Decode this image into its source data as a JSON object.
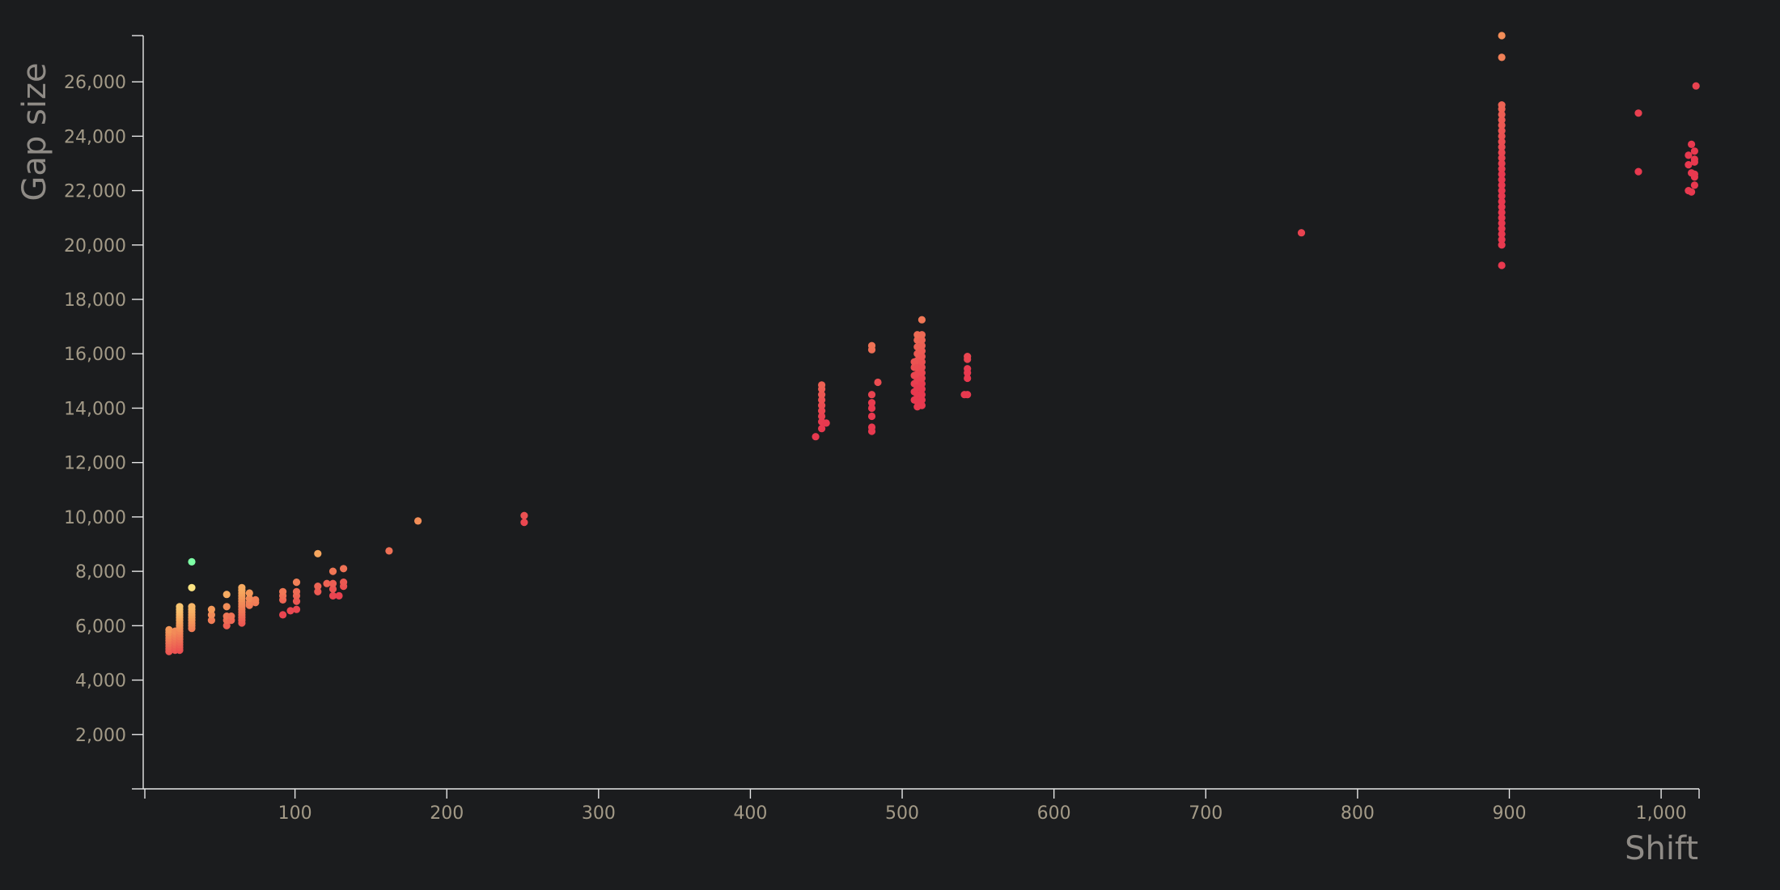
{
  "chart_data": {
    "type": "scatter",
    "xlabel": "Shift",
    "ylabel": "Gap size",
    "xlim": [
      0,
      1025
    ],
    "ylim": [
      0,
      27700
    ],
    "x_ticks": [
      "100",
      "200",
      "300",
      "400",
      "500",
      "600",
      "700",
      "800",
      "900",
      "1,000"
    ],
    "y_ticks": [
      "2,000",
      "4,000",
      "6,000",
      "8,000",
      "10,000",
      "12,000",
      "14,000",
      "16,000",
      "18,000",
      "20,000",
      "22,000",
      "24,000",
      "26,000"
    ],
    "grid": false,
    "legend": "none",
    "colors": {
      "background": "#1b1c1e",
      "low": "#e8394f",
      "mid": "#f5a05a",
      "high": "#fef08a",
      "highest": "#7dffa5"
    },
    "points": [
      [
        17,
        5050
      ],
      [
        17,
        5150
      ],
      [
        17,
        5250
      ],
      [
        17,
        5350
      ],
      [
        17,
        5450
      ],
      [
        17,
        5550
      ],
      [
        17,
        5650
      ],
      [
        17,
        5750
      ],
      [
        17,
        5850
      ],
      [
        21,
        5100
      ],
      [
        21,
        5200
      ],
      [
        21,
        5300
      ],
      [
        21,
        5400
      ],
      [
        21,
        5500
      ],
      [
        21,
        5600
      ],
      [
        21,
        5700
      ],
      [
        21,
        5800
      ],
      [
        24,
        5100
      ],
      [
        24,
        5200
      ],
      [
        24,
        5300
      ],
      [
        24,
        5400
      ],
      [
        24,
        5500
      ],
      [
        24,
        5600
      ],
      [
        24,
        5700
      ],
      [
        24,
        5800
      ],
      [
        24,
        5900
      ],
      [
        24,
        6000
      ],
      [
        24,
        6100
      ],
      [
        24,
        6200
      ],
      [
        24,
        6300
      ],
      [
        24,
        6400
      ],
      [
        24,
        6500
      ],
      [
        24,
        6600
      ],
      [
        24,
        6700
      ],
      [
        32,
        5900
      ],
      [
        32,
        6000
      ],
      [
        32,
        6100
      ],
      [
        32,
        6200
      ],
      [
        32,
        6300
      ],
      [
        32,
        6400
      ],
      [
        32,
        6500
      ],
      [
        32,
        6600
      ],
      [
        32,
        6700
      ],
      [
        32,
        7400
      ],
      [
        32,
        8350
      ],
      [
        45,
        6200
      ],
      [
        45,
        6400
      ],
      [
        45,
        6600
      ],
      [
        55,
        6000
      ],
      [
        55,
        6200
      ],
      [
        55,
        6350
      ],
      [
        55,
        6700
      ],
      [
        55,
        7150
      ],
      [
        58,
        6200
      ],
      [
        58,
        6350
      ],
      [
        65,
        6100
      ],
      [
        65,
        6200
      ],
      [
        65,
        6300
      ],
      [
        65,
        6400
      ],
      [
        65,
        6500
      ],
      [
        65,
        6600
      ],
      [
        65,
        6700
      ],
      [
        65,
        6800
      ],
      [
        65,
        6900
      ],
      [
        65,
        7000
      ],
      [
        65,
        7100
      ],
      [
        65,
        7200
      ],
      [
        65,
        7300
      ],
      [
        65,
        7400
      ],
      [
        70,
        6750
      ],
      [
        70,
        6850
      ],
      [
        70,
        7000
      ],
      [
        70,
        7200
      ],
      [
        74,
        6850
      ],
      [
        74,
        6950
      ],
      [
        92,
        6400
      ],
      [
        92,
        6950
      ],
      [
        92,
        7100
      ],
      [
        92,
        7250
      ],
      [
        97,
        6550
      ],
      [
        101,
        6600
      ],
      [
        101,
        6900
      ],
      [
        101,
        7100
      ],
      [
        101,
        7250
      ],
      [
        101,
        7600
      ],
      [
        115,
        7250
      ],
      [
        115,
        7450
      ],
      [
        115,
        8650
      ],
      [
        121,
        7550
      ],
      [
        125,
        7100
      ],
      [
        125,
        7350
      ],
      [
        125,
        7550
      ],
      [
        125,
        8000
      ],
      [
        129,
        7100
      ],
      [
        132,
        7450
      ],
      [
        132,
        7600
      ],
      [
        132,
        8100
      ],
      [
        162,
        8750
      ],
      [
        181,
        9850
      ],
      [
        251,
        9800
      ],
      [
        251,
        10050
      ],
      [
        443,
        12950
      ],
      [
        447,
        13250
      ],
      [
        447,
        13500
      ],
      [
        447,
        13700
      ],
      [
        447,
        13900
      ],
      [
        447,
        14100
      ],
      [
        447,
        14300
      ],
      [
        447,
        14500
      ],
      [
        447,
        14700
      ],
      [
        447,
        14850
      ],
      [
        450,
        13450
      ],
      [
        480,
        13150
      ],
      [
        480,
        13300
      ],
      [
        480,
        13700
      ],
      [
        480,
        14000
      ],
      [
        480,
        14200
      ],
      [
        480,
        14500
      ],
      [
        480,
        16150
      ],
      [
        480,
        16300
      ],
      [
        484,
        14950
      ],
      [
        508,
        14300
      ],
      [
        508,
        14600
      ],
      [
        508,
        14900
      ],
      [
        508,
        15200
      ],
      [
        508,
        15500
      ],
      [
        508,
        15700
      ],
      [
        510,
        14050
      ],
      [
        510,
        14250
      ],
      [
        510,
        14500
      ],
      [
        510,
        14750
      ],
      [
        510,
        15000
      ],
      [
        510,
        15250
      ],
      [
        510,
        15500
      ],
      [
        510,
        15750
      ],
      [
        510,
        16000
      ],
      [
        510,
        16250
      ],
      [
        510,
        16500
      ],
      [
        510,
        16700
      ],
      [
        513,
        14100
      ],
      [
        513,
        14300
      ],
      [
        513,
        14500
      ],
      [
        513,
        14700
      ],
      [
        513,
        14900
      ],
      [
        513,
        15100
      ],
      [
        513,
        15300
      ],
      [
        513,
        15500
      ],
      [
        513,
        15700
      ],
      [
        513,
        15900
      ],
      [
        513,
        16100
      ],
      [
        513,
        16300
      ],
      [
        513,
        16500
      ],
      [
        513,
        16700
      ],
      [
        513,
        17250
      ],
      [
        541,
        14500
      ],
      [
        543,
        14500
      ],
      [
        543,
        15100
      ],
      [
        543,
        15300
      ],
      [
        543,
        15450
      ],
      [
        543,
        15800
      ],
      [
        543,
        15900
      ],
      [
        763,
        20450
      ],
      [
        895,
        19250
      ],
      [
        895,
        20000
      ],
      [
        895,
        20200
      ],
      [
        895,
        20400
      ],
      [
        895,
        20600
      ],
      [
        895,
        20800
      ],
      [
        895,
        21000
      ],
      [
        895,
        21200
      ],
      [
        895,
        21400
      ],
      [
        895,
        21600
      ],
      [
        895,
        21800
      ],
      [
        895,
        22000
      ],
      [
        895,
        22200
      ],
      [
        895,
        22400
      ],
      [
        895,
        22600
      ],
      [
        895,
        22800
      ],
      [
        895,
        23000
      ],
      [
        895,
        23200
      ],
      [
        895,
        23400
      ],
      [
        895,
        23600
      ],
      [
        895,
        23800
      ],
      [
        895,
        24000
      ],
      [
        895,
        24200
      ],
      [
        895,
        24400
      ],
      [
        895,
        24600
      ],
      [
        895,
        24800
      ],
      [
        895,
        25000
      ],
      [
        895,
        25150
      ],
      [
        895,
        26900
      ],
      [
        895,
        27700
      ],
      [
        985,
        22700
      ],
      [
        985,
        24850
      ],
      [
        1018,
        22000
      ],
      [
        1018,
        22950
      ],
      [
        1018,
        23300
      ],
      [
        1020,
        21950
      ],
      [
        1020,
        22650
      ],
      [
        1020,
        23700
      ],
      [
        1022,
        22200
      ],
      [
        1022,
        22500
      ],
      [
        1022,
        22600
      ],
      [
        1022,
        23050
      ],
      [
        1022,
        23150
      ],
      [
        1022,
        23450
      ],
      [
        1023,
        25850
      ]
    ]
  }
}
